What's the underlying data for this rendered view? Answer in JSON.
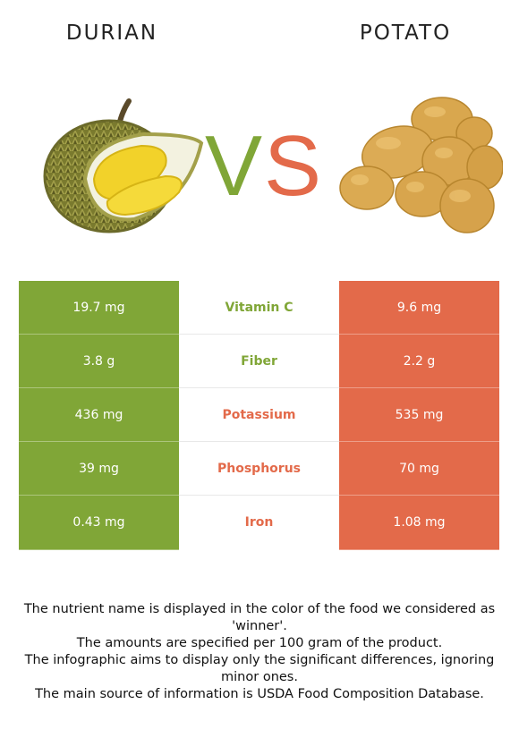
{
  "left_food": {
    "name": "DURIAN"
  },
  "right_food": {
    "name": "POTATO"
  },
  "vs": {
    "v": "V",
    "s": "S"
  },
  "colors": {
    "left_winner": "#80a637",
    "right_winner": "#e36a4a"
  },
  "rows": [
    {
      "left_value": "19.7 mg",
      "nutrient": "Vitamin C",
      "right_value": "9.6 mg",
      "winner": "left"
    },
    {
      "left_value": "3.8 g",
      "nutrient": "Fiber",
      "right_value": "2.2 g",
      "winner": "left"
    },
    {
      "left_value": "436 mg",
      "nutrient": "Potassium",
      "right_value": "535 mg",
      "winner": "right"
    },
    {
      "left_value": "39 mg",
      "nutrient": "Phosphorus",
      "right_value": "70 mg",
      "winner": "right"
    },
    {
      "left_value": "0.43 mg",
      "nutrient": "Iron",
      "right_value": "1.08 mg",
      "winner": "right"
    }
  ],
  "footnote": {
    "line1": "The nutrient name is displayed in the color of the food we considered as 'winner'.",
    "line2": "The amounts are specified per 100 gram of the product.",
    "line3": "The infographic aims to display only the significant differences, ignoring minor ones.",
    "line4": "The main source of information is USDA Food Composition Database."
  }
}
